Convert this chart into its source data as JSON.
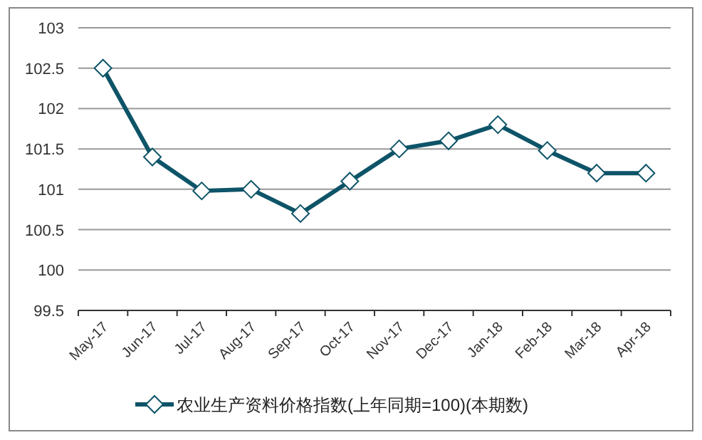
{
  "chart_data": {
    "type": "line",
    "categories": [
      "May-17",
      "Jun-17",
      "Jul-17",
      "Aug-17",
      "Sep-17",
      "Oct-17",
      "Nov-17",
      "Dec-17",
      "Jan-18",
      "Feb-18",
      "Mar-18",
      "Apr-18"
    ],
    "series": [
      {
        "name": "农业生产资料价格指数(上年同期=100)(本期数)",
        "color": "#0e5468",
        "values": [
          102.5,
          101.4,
          100.98,
          101.0,
          100.7,
          101.1,
          101.5,
          101.6,
          101.8,
          101.48,
          101.2,
          101.2
        ]
      }
    ],
    "ylim": [
      99.5,
      103
    ],
    "yticks": [
      99.5,
      100,
      100.5,
      101,
      101.5,
      102,
      102.5,
      103
    ],
    "grid": "y",
    "legend": "bottom",
    "marker": "diamond",
    "line_style": "solid"
  }
}
